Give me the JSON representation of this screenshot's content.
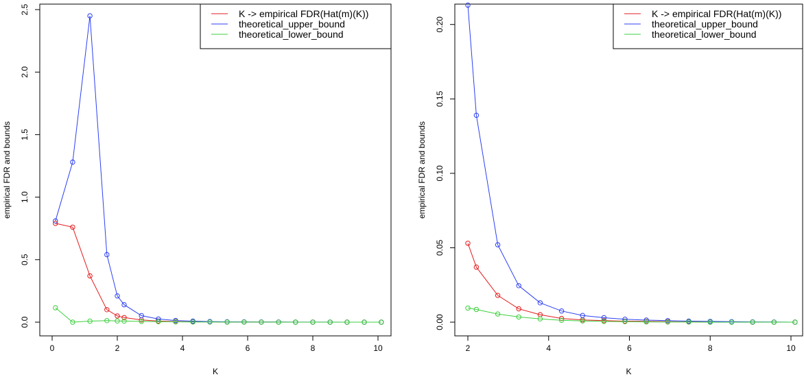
{
  "chart_data": [
    {
      "type": "line",
      "title": "",
      "xlabel": "K",
      "ylabel": "empirical FDR and bounds",
      "xlim": [
        0,
        10
      ],
      "ylim": [
        0,
        2.5
      ],
      "xticks": [
        0,
        2,
        4,
        6,
        8,
        10
      ],
      "yticks": [
        0.0,
        0.5,
        1.0,
        1.5,
        2.0,
        2.5
      ],
      "xtick_labels": [
        "0",
        "2",
        "4",
        "6",
        "8",
        "10"
      ],
      "ytick_labels": [
        "0.0",
        "0.5",
        "1.0",
        "1.5",
        "2.0",
        "2.5"
      ],
      "grid": false,
      "legend_position": "top-right",
      "x": [
        0.1,
        0.63,
        1.16,
        1.68,
        2.0,
        2.21,
        2.74,
        3.26,
        3.79,
        4.32,
        4.84,
        5.37,
        5.89,
        6.42,
        6.95,
        7.47,
        8.0,
        8.53,
        9.05,
        9.58,
        10.1
      ],
      "series": [
        {
          "name": "K -> empirical FDR(Hat(m)(K))",
          "color": "#e41a1c",
          "values": [
            0.79,
            0.76,
            0.37,
            0.1,
            0.05,
            0.037,
            0.018,
            0.009,
            0.005,
            0.003,
            0.002,
            0.001,
            0.001,
            0.0005,
            0.0003,
            0.0002,
            0.0001,
            0.0001,
            0,
            0,
            0
          ]
        },
        {
          "name": "theoretical_upper_bound",
          "color": "#2b3ff2",
          "values": [
            0.81,
            1.28,
            2.45,
            0.54,
            0.21,
            0.139,
            0.052,
            0.025,
            0.013,
            0.008,
            0.005,
            0.003,
            0.002,
            0.0015,
            0.001,
            0.0007,
            0.0005,
            0.0003,
            0.0002,
            0.0001,
            0
          ]
        },
        {
          "name": "theoretical_lower_bound",
          "color": "#3ccf3c",
          "values": [
            0.115,
            0.0,
            0.008,
            0.012,
            0.01,
            0.009,
            0.006,
            0.004,
            0.0025,
            0.0015,
            0.001,
            0.0007,
            0.0005,
            0.0003,
            0.0002,
            0.0001,
            0,
            0,
            0,
            0,
            0
          ]
        }
      ]
    },
    {
      "type": "line",
      "title": "",
      "xlabel": "K",
      "ylabel": "empirical FDR and bounds",
      "xlim": [
        2,
        10
      ],
      "ylim": [
        0,
        0.21
      ],
      "xticks": [
        2,
        4,
        6,
        8,
        10
      ],
      "yticks": [
        0.0,
        0.05,
        0.1,
        0.15,
        0.2
      ],
      "xtick_labels": [
        "2",
        "4",
        "6",
        "8",
        "10"
      ],
      "ytick_labels": [
        "0.00",
        "0.05",
        "0.10",
        "0.15",
        "0.20"
      ],
      "grid": false,
      "legend_position": "top-right",
      "x": [
        2.0,
        2.21,
        2.74,
        3.26,
        3.79,
        4.32,
        4.84,
        5.37,
        5.89,
        6.42,
        6.95,
        7.47,
        8.0,
        8.53,
        9.05,
        9.58,
        10.1
      ],
      "series": [
        {
          "name": "K -> empirical FDR(Hat(m)(K))",
          "color": "#e41a1c",
          "values": [
            0.053,
            0.037,
            0.018,
            0.009,
            0.005,
            0.0025,
            0.0015,
            0.001,
            0.0007,
            0.0005,
            0.0003,
            0.0002,
            0.0001,
            0.0001,
            0,
            0,
            0
          ]
        },
        {
          "name": "theoretical_upper_bound",
          "color": "#2b3ff2",
          "values": [
            0.213,
            0.139,
            0.052,
            0.0245,
            0.013,
            0.0075,
            0.0045,
            0.003,
            0.002,
            0.0014,
            0.001,
            0.0007,
            0.0005,
            0.0003,
            0.0002,
            0.0001,
            0
          ]
        },
        {
          "name": "theoretical_lower_bound",
          "color": "#3ccf3c",
          "values": [
            0.0095,
            0.0085,
            0.0055,
            0.0035,
            0.0022,
            0.0013,
            0.0008,
            0.0005,
            0.0003,
            0.0002,
            0.0001,
            0.0001,
            0,
            0,
            0,
            0,
            0
          ]
        }
      ]
    }
  ]
}
